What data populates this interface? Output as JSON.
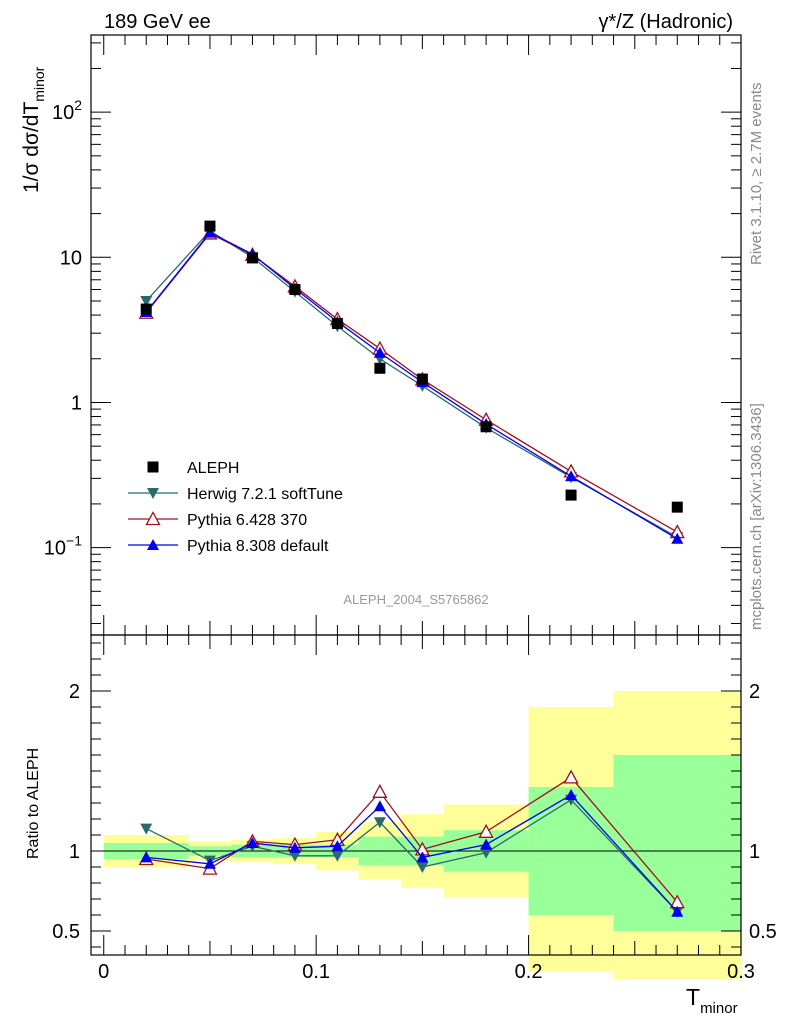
{
  "header": {
    "left": "189 GeV ee",
    "right": "γ*/Z (Hadronic)"
  },
  "side_labels": {
    "rivet": "Rivet 3.1.10, ≥ 2.7M events",
    "mcplots": "mcplots.cern.ch [arXiv:1306.3436]"
  },
  "watermark": "ALEPH_2004_S5765862",
  "colors": {
    "aleph": "#000000",
    "herwig": "#2a6a6e",
    "pythia6": "#a01020",
    "pythia8": "#0000ee",
    "band_inner": "#99ff99",
    "band_outer": "#ffff99"
  },
  "chart_data": [
    {
      "type": "line",
      "scale": "log",
      "ylabel": "1/σ  dσ/dT_minor",
      "ylim": [
        0.025,
        340
      ],
      "xlim": [
        -0.006,
        0.3
      ],
      "yticks": [
        "10^-1",
        "1",
        "10",
        "10^2"
      ],
      "x": [
        0.02,
        0.05,
        0.07,
        0.09,
        0.11,
        0.13,
        0.15,
        0.18,
        0.22,
        0.27
      ],
      "series": [
        {
          "name": "ALEPH",
          "values": [
            4.4,
            16.4,
            9.9,
            6.0,
            3.5,
            1.72,
            1.45,
            0.68,
            0.23,
            0.19
          ]
        },
        {
          "name": "Herwig 7.2.1 softTune",
          "values": [
            5.0,
            15.2,
            10.0,
            5.8,
            3.35,
            2.0,
            1.3,
            0.67,
            0.305,
            0.118
          ]
        },
        {
          "name": "Pythia 6.428 370",
          "values": [
            4.15,
            14.6,
            10.4,
            6.3,
            3.75,
            2.35,
            1.44,
            0.76,
            0.335,
            0.128
          ]
        },
        {
          "name": "Pythia 8.308 default",
          "values": [
            4.2,
            14.8,
            10.5,
            6.1,
            3.6,
            2.2,
            1.38,
            0.71,
            0.31,
            0.115
          ]
        }
      ],
      "legend": "bottom-left"
    },
    {
      "type": "line",
      "ylabel": "Ratio to ALEPH",
      "xlabel": "T_minor",
      "ylim": [
        0.35,
        2.35
      ],
      "xlim": [
        -0.006,
        0.3
      ],
      "yticks": [
        "0.5",
        "1",
        "2"
      ],
      "xticks": [
        "0",
        "0.1",
        "0.2",
        "0.3"
      ],
      "x": [
        0.02,
        0.05,
        0.07,
        0.09,
        0.11,
        0.13,
        0.15,
        0.18,
        0.22,
        0.27
      ],
      "bin_edges": [
        0.0,
        0.04,
        0.06,
        0.08,
        0.1,
        0.12,
        0.14,
        0.16,
        0.2,
        0.24,
        0.3
      ],
      "band_inner": [
        [
          0.95,
          1.05
        ],
        [
          0.97,
          1.03
        ],
        [
          0.96,
          1.04
        ],
        [
          0.96,
          1.04
        ],
        [
          0.96,
          1.04
        ],
        [
          0.91,
          1.09
        ],
        [
          0.91,
          1.09
        ],
        [
          0.87,
          1.13
        ],
        [
          0.6,
          1.4
        ],
        [
          0.5,
          1.6
        ]
      ],
      "band_outer": [
        [
          0.9,
          1.1
        ],
        [
          0.94,
          1.06
        ],
        [
          0.93,
          1.07
        ],
        [
          0.92,
          1.08
        ],
        [
          0.88,
          1.12
        ],
        [
          0.82,
          1.18
        ],
        [
          0.77,
          1.23
        ],
        [
          0.71,
          1.29
        ],
        [
          0.25,
          1.9
        ],
        [
          0.2,
          2.0
        ]
      ],
      "series": [
        {
          "name": "Herwig 7.2.1 softTune",
          "values": [
            1.14,
            0.94,
            1.03,
            0.97,
            0.97,
            1.18,
            0.9,
            0.99,
            1.32,
            0.62
          ]
        },
        {
          "name": "Pythia 6.428 370",
          "values": [
            0.95,
            0.89,
            1.06,
            1.04,
            1.07,
            1.37,
            1.01,
            1.12,
            1.46,
            0.68
          ]
        },
        {
          "name": "Pythia 8.308 default",
          "values": [
            0.96,
            0.92,
            1.05,
            1.02,
            1.03,
            1.28,
            0.96,
            1.04,
            1.35,
            0.62
          ]
        }
      ]
    }
  ]
}
